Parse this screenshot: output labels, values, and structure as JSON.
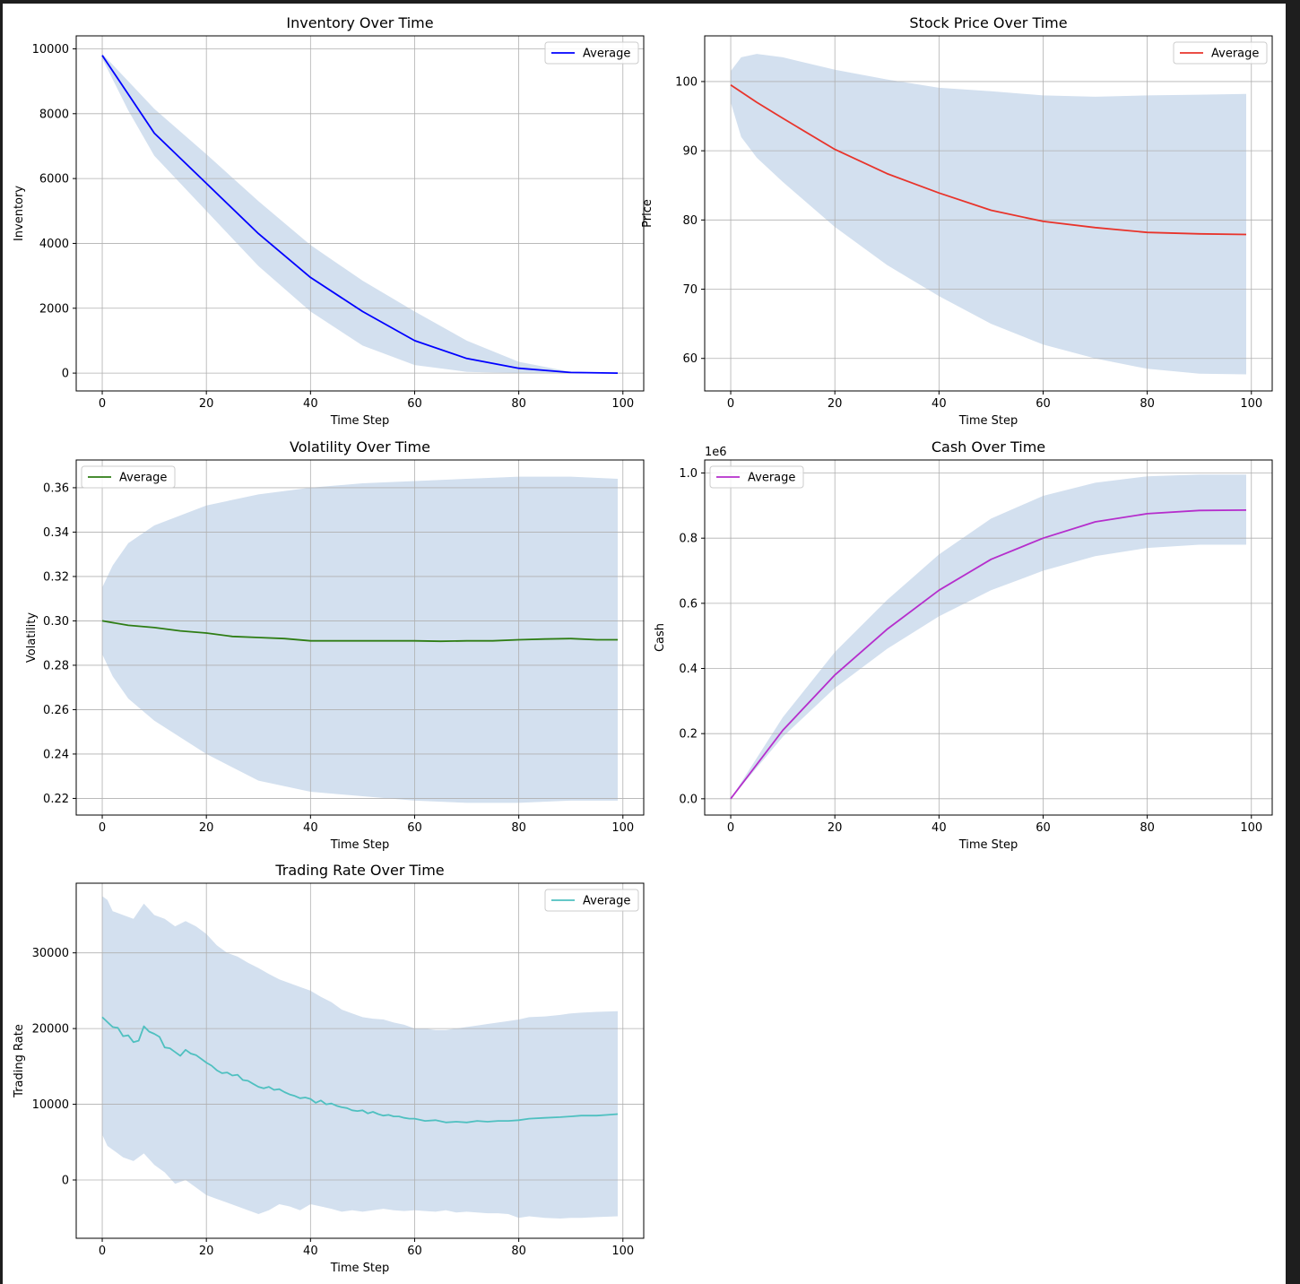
{
  "colors": {
    "band": "#d3e0ef",
    "grid": "#b0b0b0",
    "inventory": "#0000ff",
    "price": "#e8342b",
    "volatility": "#2e7d14",
    "cash": "#b52ecc",
    "trading_rate": "#4fc0c0"
  },
  "chart_data": [
    {
      "type": "line",
      "title": "Inventory Over Time",
      "xlabel": "Time Step",
      "ylabel": "Inventory",
      "legend": "top-right",
      "grid": true,
      "xlim": [
        -5,
        104
      ],
      "ylim": [
        -550,
        10400
      ],
      "xticks": [
        0,
        20,
        40,
        60,
        80,
        100
      ],
      "yticks": [
        0,
        2000,
        4000,
        6000,
        8000,
        10000
      ],
      "ytick_labels": [
        "0",
        "2000",
        "4000",
        "6000",
        "8000",
        "10000"
      ],
      "series": [
        {
          "name": "Average",
          "color_key": "inventory",
          "x": [
            0,
            5,
            10,
            20,
            30,
            40,
            50,
            60,
            70,
            80,
            90,
            99
          ],
          "y": [
            9800,
            8600,
            7400,
            5850,
            4300,
            2950,
            1900,
            1000,
            450,
            150,
            20,
            0
          ]
        }
      ],
      "band": {
        "x": [
          0,
          5,
          10,
          20,
          30,
          40,
          50,
          60,
          70,
          80,
          90,
          99
        ],
        "lower": [
          9700,
          8100,
          6700,
          5000,
          3300,
          1900,
          850,
          250,
          40,
          0,
          0,
          0
        ],
        "upper": [
          9850,
          9000,
          8150,
          6750,
          5300,
          3950,
          2850,
          1900,
          1000,
          350,
          40,
          0
        ]
      }
    },
    {
      "type": "line",
      "title": "Stock Price Over Time",
      "xlabel": "Time Step",
      "ylabel": "Price",
      "legend": "top-right",
      "grid": true,
      "xlim": [
        -5,
        104
      ],
      "ylim": [
        55.3,
        106.6
      ],
      "xticks": [
        0,
        20,
        40,
        60,
        80,
        100
      ],
      "yticks": [
        60,
        70,
        80,
        90,
        100
      ],
      "ytick_labels": [
        "60",
        "70",
        "80",
        "90",
        "100"
      ],
      "series": [
        {
          "name": "Average",
          "color_key": "price",
          "x": [
            0,
            5,
            10,
            20,
            30,
            40,
            50,
            60,
            70,
            80,
            90,
            99
          ],
          "y": [
            99.5,
            97,
            94.7,
            90.2,
            86.7,
            83.9,
            81.4,
            79.8,
            78.9,
            78.2,
            78.0,
            77.9
          ]
        }
      ],
      "band": {
        "x": [
          0,
          2,
          5,
          10,
          20,
          30,
          40,
          50,
          60,
          70,
          80,
          90,
          99
        ],
        "lower": [
          97,
          92,
          89,
          85.5,
          79,
          73.5,
          69,
          65,
          62,
          60,
          58.5,
          57.8,
          57.7
        ],
        "upper": [
          101.5,
          103.5,
          104,
          103.5,
          101.7,
          100.3,
          99.1,
          98.6,
          98.0,
          97.8,
          98.0,
          98.1,
          98.2
        ]
      }
    },
    {
      "type": "line",
      "title": "Volatility Over Time",
      "xlabel": "Time Step",
      "ylabel": "Volatility",
      "legend": "top-left",
      "grid": true,
      "xlim": [
        -5,
        104
      ],
      "ylim": [
        0.2125,
        0.3725
      ],
      "xticks": [
        0,
        20,
        40,
        60,
        80,
        100
      ],
      "yticks": [
        0.22,
        0.24,
        0.26,
        0.28,
        0.3,
        0.32,
        0.34,
        0.36
      ],
      "ytick_labels": [
        "0.22",
        "0.24",
        "0.26",
        "0.28",
        "0.30",
        "0.32",
        "0.34",
        "0.36"
      ],
      "series": [
        {
          "name": "Average",
          "color_key": "volatility",
          "x": [
            0,
            5,
            10,
            15,
            20,
            25,
            30,
            35,
            40,
            45,
            50,
            55,
            60,
            65,
            70,
            75,
            80,
            85,
            90,
            95,
            99
          ],
          "y": [
            0.3,
            0.298,
            0.297,
            0.2955,
            0.2945,
            0.293,
            0.2925,
            0.292,
            0.291,
            0.291,
            0.291,
            0.291,
            0.291,
            0.2908,
            0.291,
            0.291,
            0.2915,
            0.2918,
            0.292,
            0.2915,
            0.2915
          ]
        }
      ],
      "band": {
        "x": [
          0,
          2,
          5,
          10,
          20,
          30,
          40,
          50,
          60,
          70,
          80,
          90,
          99
        ],
        "lower": [
          0.285,
          0.275,
          0.265,
          0.255,
          0.24,
          0.228,
          0.223,
          0.221,
          0.219,
          0.218,
          0.218,
          0.219,
          0.219
        ],
        "upper": [
          0.315,
          0.325,
          0.335,
          0.343,
          0.352,
          0.357,
          0.36,
          0.362,
          0.363,
          0.364,
          0.365,
          0.365,
          0.364
        ]
      }
    },
    {
      "type": "line",
      "title": "Cash Over Time",
      "xlabel": "Time Step",
      "ylabel": "Cash",
      "offset_text": "1e6",
      "legend": "top-left",
      "grid": true,
      "xlim": [
        -5,
        104
      ],
      "ylim": [
        -0.05,
        1.04
      ],
      "xticks": [
        0,
        20,
        40,
        60,
        80,
        100
      ],
      "yticks": [
        0.0,
        0.2,
        0.4,
        0.6,
        0.8,
        1.0
      ],
      "ytick_labels": [
        "0.0",
        "0.2",
        "0.4",
        "0.6",
        "0.8",
        "1.0"
      ],
      "series": [
        {
          "name": "Average",
          "color_key": "cash",
          "x": [
            0,
            10,
            20,
            30,
            40,
            50,
            60,
            70,
            80,
            90,
            99
          ],
          "y": [
            0,
            0.21,
            0.38,
            0.52,
            0.64,
            0.735,
            0.8,
            0.85,
            0.875,
            0.885,
            0.886
          ]
        }
      ],
      "band": {
        "x": [
          0,
          10,
          20,
          30,
          40,
          50,
          60,
          70,
          80,
          90,
          99
        ],
        "lower": [
          0,
          0.19,
          0.34,
          0.46,
          0.56,
          0.64,
          0.7,
          0.745,
          0.77,
          0.78,
          0.78
        ],
        "upper": [
          0,
          0.25,
          0.45,
          0.61,
          0.75,
          0.86,
          0.93,
          0.97,
          0.99,
          0.995,
          0.995
        ]
      }
    },
    {
      "type": "line",
      "title": "Trading Rate Over Time",
      "xlabel": "Time Step",
      "ylabel": "Trading Rate",
      "legend": "top-right",
      "grid": true,
      "xlim": [
        -5,
        104
      ],
      "ylim": [
        -7700,
        39200
      ],
      "xticks": [
        0,
        20,
        40,
        60,
        80,
        100
      ],
      "yticks": [
        0,
        10000,
        20000,
        30000
      ],
      "ytick_labels": [
        "0",
        "10000",
        "20000",
        "30000"
      ],
      "series": [
        {
          "name": "Average",
          "color_key": "trading_rate",
          "x": [
            0,
            2,
            3,
            4,
            5,
            6,
            7,
            8,
            9,
            10,
            11,
            12,
            13,
            14,
            15,
            16,
            17,
            18,
            19,
            20,
            21,
            22,
            23,
            24,
            25,
            26,
            27,
            28,
            29,
            30,
            31,
            32,
            33,
            34,
            35,
            36,
            37,
            38,
            39,
            40,
            41,
            42,
            43,
            44,
            45,
            46,
            47,
            48,
            49,
            50,
            51,
            52,
            53,
            54,
            55,
            56,
            57,
            58,
            59,
            60,
            62,
            64,
            66,
            68,
            70,
            72,
            74,
            76,
            78,
            80,
            82,
            85,
            88,
            90,
            92,
            95,
            97,
            99
          ],
          "y": [
            21500,
            20200,
            20100,
            19000,
            19100,
            18200,
            18400,
            20300,
            19600,
            19300,
            18900,
            17500,
            17400,
            16900,
            16400,
            17200,
            16700,
            16500,
            16000,
            15500,
            15100,
            14500,
            14100,
            14200,
            13800,
            13900,
            13200,
            13100,
            12700,
            12300,
            12100,
            12300,
            11900,
            12000,
            11600,
            11300,
            11100,
            10800,
            10900,
            10700,
            10200,
            10500,
            10000,
            10100,
            9800,
            9600,
            9500,
            9200,
            9100,
            9200,
            8800,
            9000,
            8700,
            8500,
            8600,
            8400,
            8400,
            8200,
            8100,
            8100,
            7800,
            7900,
            7600,
            7700,
            7600,
            7800,
            7700,
            7800,
            7800,
            7900,
            8100,
            8200,
            8300,
            8400,
            8500,
            8500,
            8600,
            8700
          ]
        }
      ],
      "band": {
        "x": [
          0,
          1,
          2,
          4,
          6,
          8,
          10,
          12,
          14,
          16,
          18,
          20,
          22,
          24,
          26,
          28,
          30,
          32,
          34,
          36,
          38,
          40,
          42,
          44,
          46,
          48,
          50,
          52,
          54,
          56,
          58,
          60,
          62,
          64,
          66,
          68,
          70,
          72,
          74,
          76,
          78,
          80,
          82,
          85,
          88,
          90,
          92,
          95,
          99
        ],
        "lower": [
          6000,
          4500,
          4000,
          3000,
          2500,
          3500,
          2000,
          1000,
          -500,
          0,
          -1000,
          -2000,
          -2500,
          -3000,
          -3500,
          -4000,
          -4500,
          -4000,
          -3200,
          -3500,
          -4000,
          -3200,
          -3500,
          -3800,
          -4200,
          -4000,
          -4200,
          -4000,
          -3800,
          -4000,
          -4100,
          -4000,
          -4100,
          -4200,
          -4000,
          -4300,
          -4200,
          -4300,
          -4400,
          -4400,
          -4500,
          -5000,
          -4800,
          -5000,
          -5100,
          -5000,
          -5000,
          -4900,
          -4800
        ],
        "upper": [
          37500,
          37000,
          35500,
          35000,
          34500,
          36500,
          35000,
          34500,
          33500,
          34200,
          33500,
          32500,
          31000,
          30000,
          29500,
          28700,
          28000,
          27200,
          26500,
          26000,
          25500,
          25000,
          24200,
          23500,
          22500,
          22000,
          21500,
          21300,
          21200,
          20800,
          20500,
          20000,
          20000,
          19800,
          19800,
          20000,
          20200,
          20400,
          20600,
          20800,
          21000,
          21200,
          21500,
          21600,
          21800,
          22000,
          22100,
          22200,
          22300
        ]
      }
    }
  ]
}
